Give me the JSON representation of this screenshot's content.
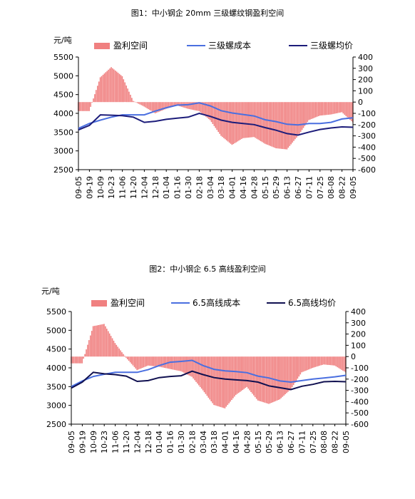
{
  "chart_data": [
    {
      "type": "line",
      "title": "图1：中小钢企 20mm 三级螺纹钢盈利空间",
      "ylabel": "元/吨",
      "ylim": [
        2500,
        5500
      ],
      "y_ticks": [
        "5500",
        "5000",
        "4500",
        "4000",
        "3500",
        "3000",
        "2500"
      ],
      "y2lim": [
        -600,
        400
      ],
      "y2_ticks": [
        "400",
        "300",
        "200",
        "100",
        "0",
        "-100",
        "-200",
        "-300",
        "-400",
        "-500",
        "-600"
      ],
      "categories": [
        "09-05",
        "09-19",
        "10-09",
        "10-23",
        "11-06",
        "11-20",
        "12-04",
        "12-18",
        "01-04",
        "01-16",
        "01-30",
        "02-18",
        "03-04",
        "03-18",
        "04-01",
        "04-16",
        "04-28",
        "05-15",
        "05-29",
        "06-13",
        "06-27",
        "07-11",
        "07-25",
        "08-08",
        "08-22",
        "09-05"
      ],
      "legend_position": "top",
      "series": [
        {
          "name": "盈利空间",
          "type": "bar",
          "axis": "right",
          "color": "#f08080",
          "values": [
            -80,
            -80,
            220,
            310,
            230,
            10,
            -40,
            -100,
            -60,
            -30,
            -60,
            -80,
            -160,
            -300,
            -380,
            -320,
            -310,
            -370,
            -410,
            -420,
            -300,
            -160,
            -120,
            -110,
            -90,
            -180
          ]
        },
        {
          "name": "三级螺成本",
          "type": "line",
          "axis": "left",
          "color": "#4a6fe0",
          "values": [
            3600,
            3730,
            3820,
            3900,
            3960,
            3960,
            3960,
            4060,
            4150,
            4220,
            4230,
            4280,
            4200,
            4070,
            4010,
            3970,
            3930,
            3830,
            3780,
            3710,
            3690,
            3730,
            3730,
            3760,
            3850,
            3880
          ]
        },
        {
          "name": "三级螺均价",
          "type": "line",
          "axis": "left",
          "color": "#1c1c7a",
          "values": [
            3560,
            3680,
            3960,
            3950,
            3940,
            3900,
            3760,
            3790,
            3840,
            3870,
            3900,
            4000,
            3920,
            3820,
            3760,
            3730,
            3700,
            3620,
            3550,
            3460,
            3420,
            3500,
            3570,
            3610,
            3640,
            3630
          ]
        }
      ]
    },
    {
      "type": "line",
      "title": "图2：中小钢企 6.5 高线盈利空间",
      "ylabel": "元/吨",
      "ylim": [
        2500,
        5500
      ],
      "y_ticks": [
        "5500",
        "5000",
        "4500",
        "4000",
        "3500",
        "3000",
        "2500"
      ],
      "y2lim": [
        -600,
        400
      ],
      "y2_ticks": [
        "400",
        "300",
        "200",
        "100",
        "0",
        "-100",
        "-200",
        "-300",
        "-400",
        "-500",
        "-600"
      ],
      "categories": [
        "09-05",
        "09-19",
        "10-09",
        "10-23",
        "11-06",
        "11-20",
        "12-04",
        "12-18",
        "01-04",
        "01-16",
        "01-30",
        "02-18",
        "03-04",
        "03-18",
        "04-01",
        "04-16",
        "04-28",
        "05-15",
        "05-29",
        "06-13",
        "06-27",
        "07-11",
        "07-25",
        "08-08",
        "08-22",
        "09-05"
      ],
      "legend_position": "top",
      "series": [
        {
          "name": "盈利空间",
          "type": "bar",
          "axis": "right",
          "color": "#f08080",
          "values": [
            -60,
            -60,
            270,
            290,
            120,
            -10,
            -120,
            -80,
            -90,
            -110,
            -130,
            -180,
            -300,
            -430,
            -460,
            -340,
            -270,
            -390,
            -420,
            -380,
            -290,
            -140,
            -100,
            -70,
            -80,
            -140
          ]
        },
        {
          "name": "6.5高线成本",
          "type": "line",
          "axis": "left",
          "color": "#4a6fe0",
          "values": [
            3500,
            3650,
            3770,
            3830,
            3880,
            3880,
            3880,
            3950,
            4060,
            4150,
            4170,
            4200,
            4060,
            3960,
            3920,
            3900,
            3870,
            3780,
            3730,
            3650,
            3620,
            3660,
            3700,
            3730,
            3760,
            3800
          ]
        },
        {
          "name": "6.5高线均价",
          "type": "line",
          "axis": "left",
          "color": "#101050",
          "values": [
            3460,
            3620,
            3880,
            3840,
            3820,
            3780,
            3640,
            3660,
            3740,
            3770,
            3790,
            3910,
            3820,
            3740,
            3700,
            3680,
            3660,
            3620,
            3520,
            3470,
            3420,
            3510,
            3560,
            3630,
            3640,
            3630
          ]
        }
      ]
    }
  ]
}
